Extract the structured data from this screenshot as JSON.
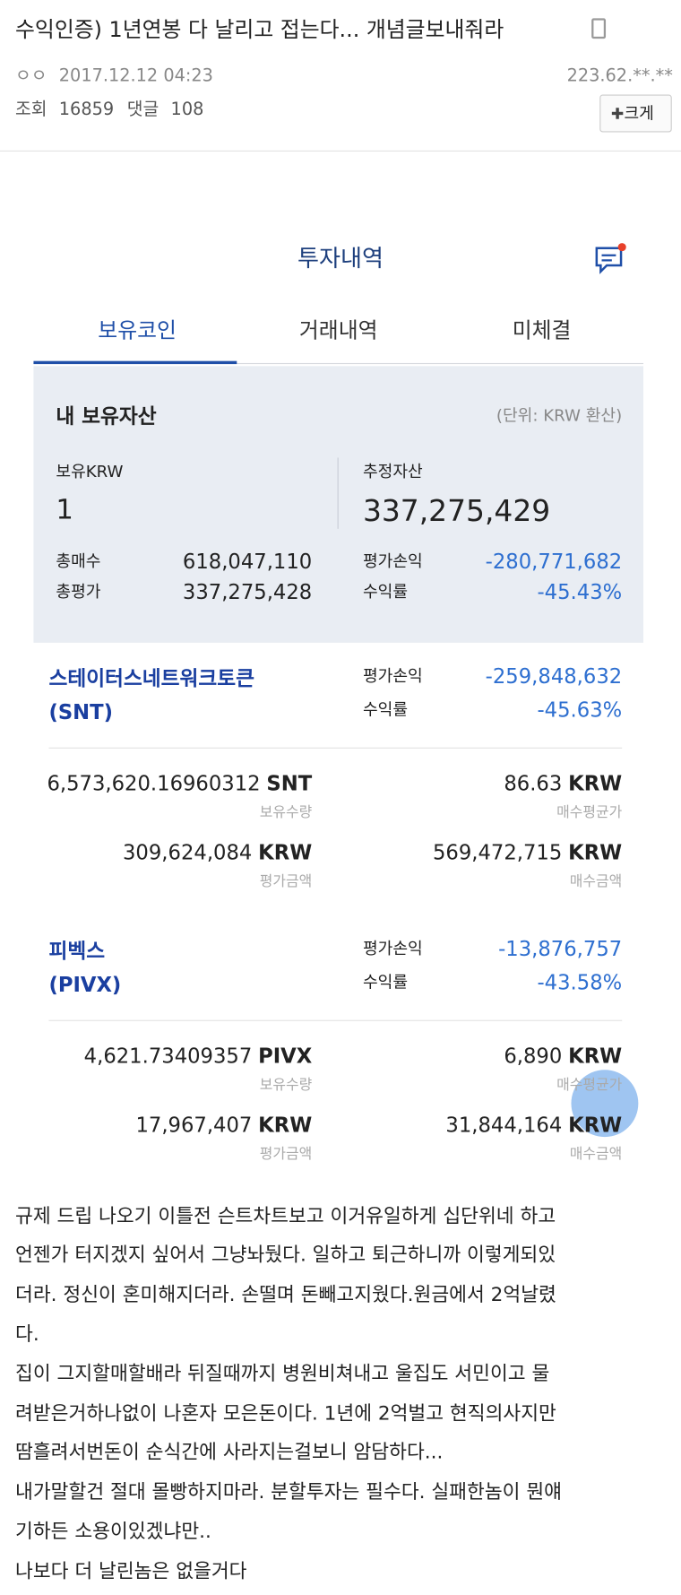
{
  "header": {
    "title": "수익인증) 1년연봉 다 날리고 접는다... 개념글보내줘라",
    "author": "ㅇㅇ",
    "date": "2017.12.12 04:23",
    "ip": "223.62.**.**",
    "views_label": "조회",
    "views": "16859",
    "comments_label": "댓글",
    "comments": "108",
    "zoom_button": "크게"
  },
  "screenshot": {
    "title": "투자내역",
    "tabs": [
      "보유코인",
      "거래내역",
      "미체결"
    ],
    "summary": {
      "title": "내 보유자산",
      "unit_note": "(단위: KRW 환산)",
      "krw_label": "보유KRW",
      "krw": "1",
      "estimated_label": "추정자산",
      "estimated": "337,275,429",
      "total_buy_label": "총매수",
      "total_buy": "618,047,110",
      "total_eval_label": "총평가",
      "total_eval": "337,275,428",
      "pl_label": "평가손익",
      "pl": "-280,771,682",
      "rate_label": "수익률",
      "rate": "-45.43%"
    },
    "coins": [
      {
        "name": "스테이터스네트워크토큰",
        "ticker": "(SNT)",
        "pl_label": "평가손익",
        "pl": "-259,848,632",
        "rate_label": "수익률",
        "rate": "-45.63%",
        "quantity": {
          "value": "6,573,620.16960312",
          "unit": "SNT",
          "label": "보유수량"
        },
        "avg_price": {
          "value": "86.63",
          "unit": "KRW",
          "label": "매수평균가"
        },
        "eval_amount": {
          "value": "309,624,084",
          "unit": "KRW",
          "label": "평가금액"
        },
        "buy_amount": {
          "value": "569,472,715",
          "unit": "KRW",
          "label": "매수금액"
        }
      },
      {
        "name": "피벡스",
        "ticker": "(PIVX)",
        "pl_label": "평가손익",
        "pl": "-13,876,757",
        "rate_label": "수익률",
        "rate": "-43.58%",
        "quantity": {
          "value": "4,621.73409357",
          "unit": "PIVX",
          "label": "보유수량"
        },
        "avg_price": {
          "value": "6,890",
          "unit": "KRW",
          "label": "매수평균가"
        },
        "eval_amount": {
          "value": "17,967,407",
          "unit": "KRW",
          "label": "평가금액"
        },
        "buy_amount": {
          "value": "31,844,164",
          "unit": "KRW",
          "label": "매수금액"
        }
      }
    ]
  },
  "body": {
    "lines": [
      "규제 드립 나오기 이틀전 슨트차트보고 이거유일하게 십단위네 하고",
      "언젠가 터지겠지 싶어서 그냥놔뒀다. 일하고 퇴근하니까 이렇게되있",
      "더라. 정신이 혼미해지더라. 손떨며 돈빼고지웠다.원금에서 2억날렸",
      "다.",
      "집이 그지할매할배라 뒤질때까지 병원비쳐내고 울집도 서민이고 물",
      "려받은거하나없이 나혼자 모은돈이다. 1년에 2억벌고 현직의사지만",
      "땀흘려서번돈이 순식간에 사라지는걸보니 암담하다...",
      "내가말할건 절대 몰빵하지마라. 분할투자는 필수다. 실패한놈이 뭔얘",
      "기하든 소용이있겠냐만..",
      "나보다 더 날린놈은 없을거다"
    ]
  }
}
